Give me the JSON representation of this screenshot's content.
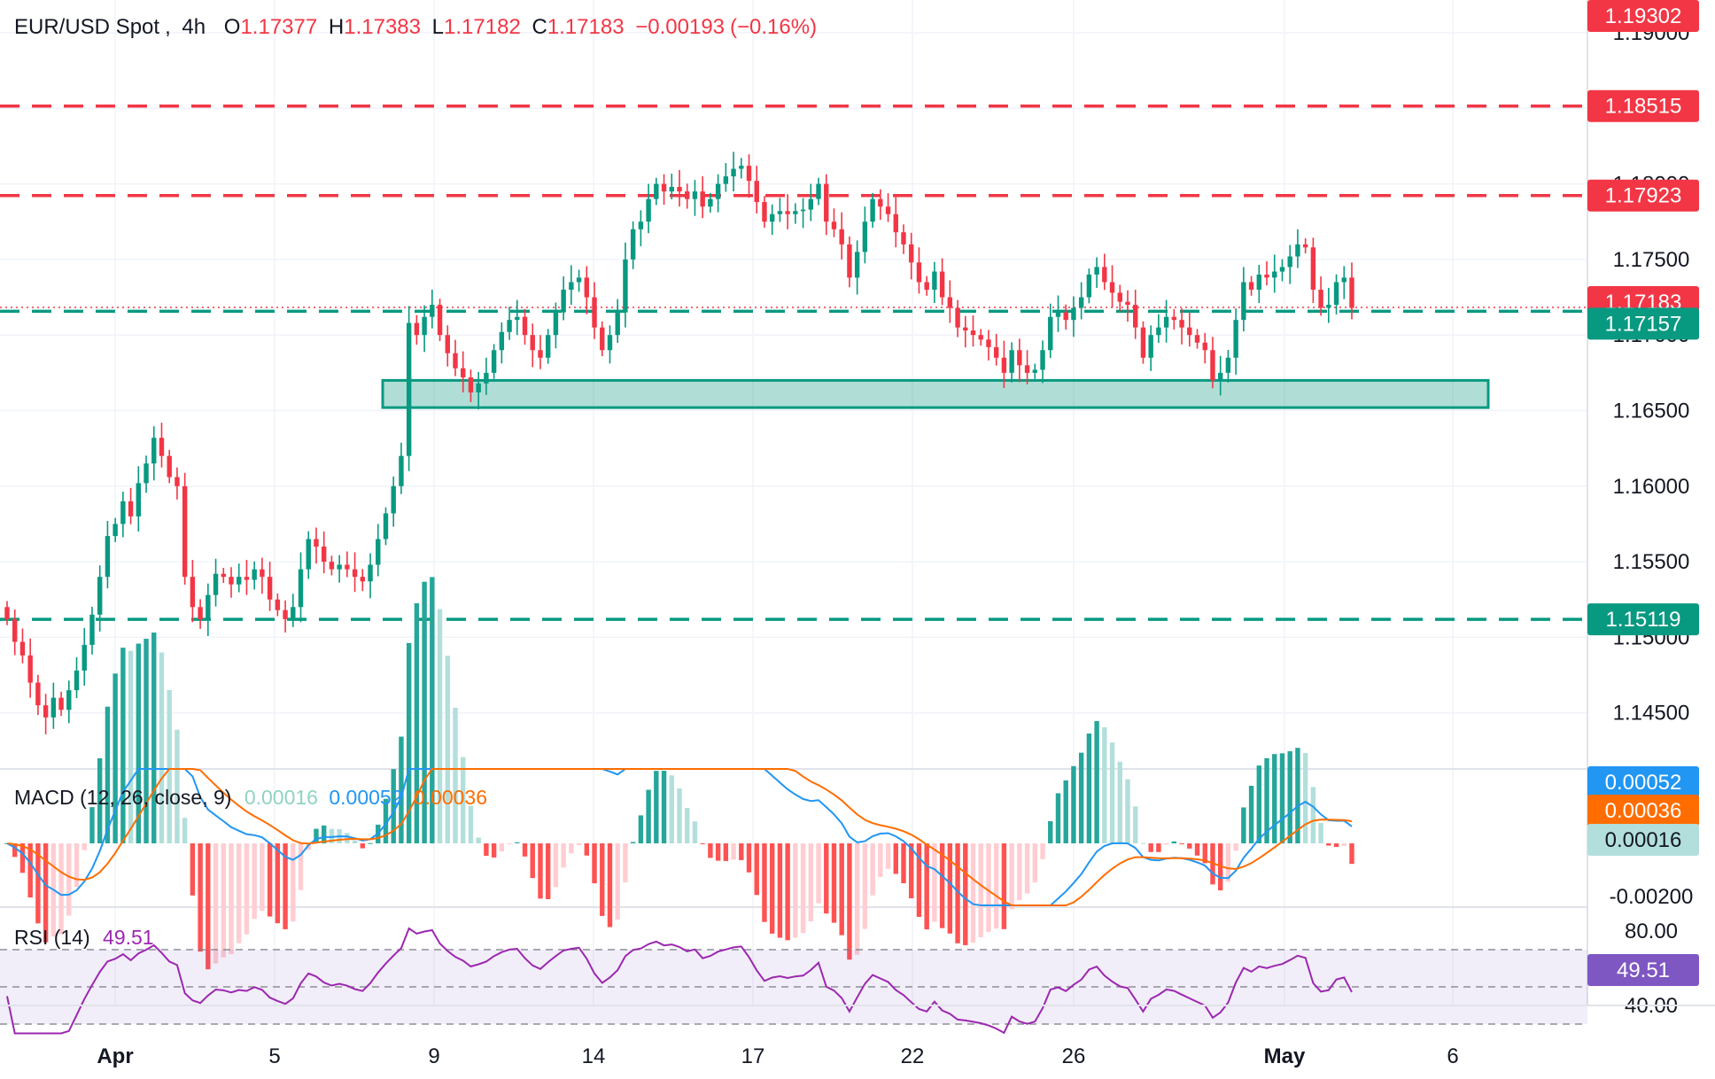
{
  "header": {
    "symbol": "EUR/USD Spot",
    "interval": "4h",
    "open_label": "O",
    "open": "1.17377",
    "high_label": "H",
    "high": "1.17383",
    "low_label": "L",
    "low": "1.17182",
    "close_label": "C",
    "close": "1.17183",
    "change": "−0.00193",
    "change_pct": "(−0.16%)"
  },
  "colors": {
    "up": "#089981",
    "down": "#f23645",
    "resistance": "#f23645",
    "support": "#089981",
    "macd": "#2196f3",
    "signal": "#ff6d00",
    "rsi": "#9c27b0",
    "rsi_band": "#7e57c2"
  },
  "price_axis": {
    "ticks": [
      "1.19000",
      "1.18500",
      "1.18000",
      "1.17500",
      "1.17000",
      "1.16500",
      "1.16000",
      "1.15500",
      "1.15000",
      "1.14500"
    ]
  },
  "levels": [
    {
      "price": 1.19302,
      "label": "1.19302",
      "kind": "badge-red",
      "line": "none"
    },
    {
      "price": 1.18515,
      "label": "1.18515",
      "kind": "badge-red",
      "line": "red-dash"
    },
    {
      "price": 1.17923,
      "label": "1.17923",
      "kind": "badge-red",
      "line": "red-dash"
    },
    {
      "price": 1.17183,
      "label": "1.17183",
      "kind": "badge-red",
      "line": "dotted-red"
    },
    {
      "price": 1.17157,
      "label": "1.17157",
      "kind": "badge-green",
      "line": "green-dash"
    },
    {
      "price": 1.15119,
      "label": "1.15119",
      "kind": "badge-green",
      "line": "green-dash"
    }
  ],
  "support_zone": {
    "from": 1.1652,
    "to": 1.167
  },
  "time_axis": [
    "Apr",
    "5",
    "9",
    "14",
    "17",
    "22",
    "26",
    "May",
    "6"
  ],
  "macd": {
    "title": "MACD (12, 26, close, 9)",
    "hist_value": "0.00016",
    "macd_value": "0.00052",
    "signal_value": "0.00036",
    "axis_label": "-0.00200"
  },
  "rsi": {
    "title": "RSI (14)",
    "value": "49.51",
    "axis": [
      "80.00",
      "40.00"
    ]
  },
  "chart_data": {
    "type": "candlestick",
    "title": "EUR/USD Spot, 4h",
    "ylim": [
      1.1425,
      1.1935
    ],
    "closes": [
      1.1512,
      1.1497,
      1.1488,
      1.147,
      1.1455,
      1.1447,
      1.146,
      1.1452,
      1.1465,
      1.1478,
      1.1495,
      1.1515,
      1.154,
      1.1567,
      1.1575,
      1.159,
      1.158,
      1.1602,
      1.1615,
      1.1632,
      1.162,
      1.1606,
      1.16,
      1.154,
      1.152,
      1.1512,
      1.1528,
      1.1542,
      1.154,
      1.1535,
      1.154,
      1.1538,
      1.1545,
      1.154,
      1.1525,
      1.1518,
      1.1512,
      1.152,
      1.1545,
      1.1565,
      1.156,
      1.155,
      1.1545,
      1.1548,
      1.1545,
      1.154,
      1.1537,
      1.1548,
      1.1565,
      1.1582,
      1.16,
      1.162,
      1.1708,
      1.17,
      1.1712,
      1.172,
      1.17,
      1.1688,
      1.1678,
      1.1672,
      1.1662,
      1.1668,
      1.1675,
      1.169,
      1.1702,
      1.171,
      1.1712,
      1.17,
      1.169,
      1.1685,
      1.17,
      1.1715,
      1.173,
      1.1735,
      1.1738,
      1.1725,
      1.1705,
      1.169,
      1.17,
      1.1715,
      1.175,
      1.177,
      1.1775,
      1.179,
      1.18,
      1.1795,
      1.1798,
      1.1795,
      1.179,
      1.1795,
      1.1785,
      1.179,
      1.18,
      1.1805,
      1.181,
      1.1812,
      1.1802,
      1.1788,
      1.1775,
      1.178,
      1.1782,
      1.178,
      1.1782,
      1.1783,
      1.179,
      1.18,
      1.1775,
      1.177,
      1.176,
      1.1738,
      1.1755,
      1.1775,
      1.179,
      1.1785,
      1.178,
      1.1768,
      1.176,
      1.1748,
      1.1735,
      1.173,
      1.1742,
      1.1725,
      1.1718,
      1.1705,
      1.1703,
      1.17,
      1.1697,
      1.1692,
      1.1685,
      1.1675,
      1.169,
      1.168,
      1.1675,
      1.1677,
      1.169,
      1.1712,
      1.1715,
      1.171,
      1.1718,
      1.1725,
      1.174,
      1.1745,
      1.1735,
      1.1728,
      1.1722,
      1.172,
      1.1705,
      1.1685,
      1.17,
      1.1705,
      1.1712,
      1.171,
      1.1705,
      1.17,
      1.1695,
      1.169,
      1.167,
      1.1675,
      1.1685,
      1.171,
      1.1735,
      1.173,
      1.174,
      1.1738,
      1.1742,
      1.1745,
      1.1752,
      1.176,
      1.1758,
      1.173,
      1.1718,
      1.172,
      1.1735,
      1.1738,
      1.1718
    ],
    "macd_hist_range": [
      -0.002,
      0.0025
    ],
    "rsi_range": [
      30,
      85
    ]
  }
}
